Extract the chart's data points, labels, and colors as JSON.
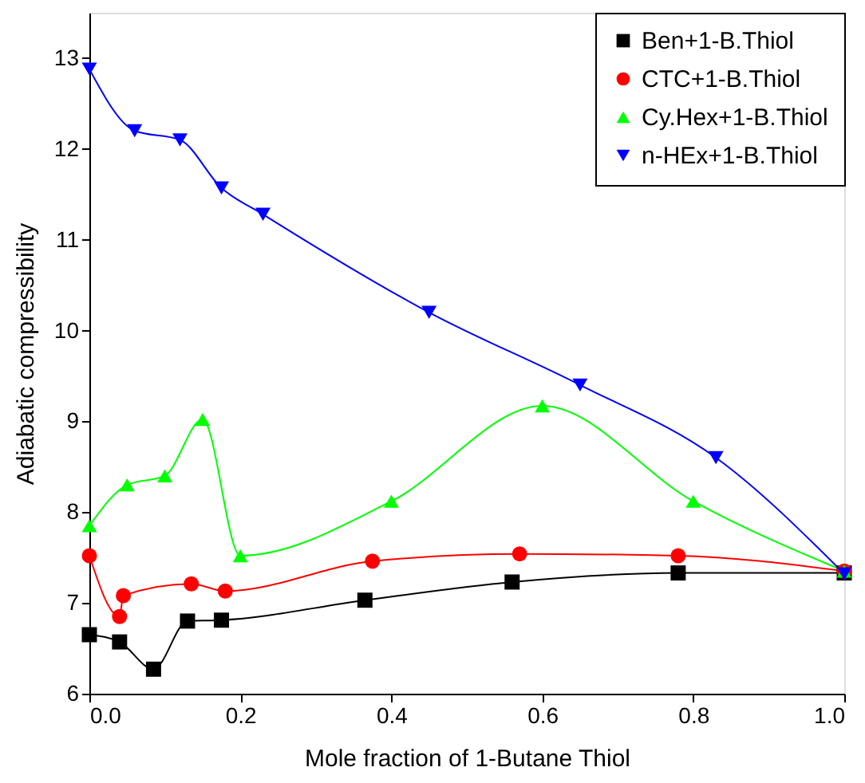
{
  "chart_data": {
    "type": "line",
    "xlabel": "Mole fraction of 1-Butane Thiol",
    "ylabel": "Adiabatic compressibility",
    "xlim": [
      0,
      1
    ],
    "xticks": [
      {
        "value": 0,
        "label": "0.0"
      },
      0.2,
      0.4,
      0.6,
      0.8,
      {
        "value": 1,
        "label": "1.0"
      }
    ],
    "ylim": [
      6,
      13.5
    ],
    "yticks": [
      6,
      7,
      8,
      9,
      10,
      11,
      12,
      13
    ],
    "grid": false,
    "legend": "top right",
    "line_style": "solid",
    "series": [
      {
        "name": "Ben+1-B.Thiol",
        "color": "#000000",
        "marker": "square",
        "x": [
          0,
          0.04,
          0.085,
          0.13,
          0.175,
          0.365,
          0.56,
          0.78,
          1.0
        ],
        "values": [
          6.65,
          6.57,
          6.27,
          6.8,
          6.81,
          7.03,
          7.23,
          7.33,
          7.33
        ]
      },
      {
        "name": "CTC+1-B.Thiol",
        "color": "#ff0000",
        "marker": "circle",
        "x": [
          0,
          0.04,
          0.045,
          0.135,
          0.18,
          0.375,
          0.57,
          0.78,
          1.0
        ],
        "values": [
          7.52,
          6.85,
          7.08,
          7.21,
          7.13,
          7.46,
          7.54,
          7.52,
          7.35
        ]
      },
      {
        "name": "Cy.Hex+1-B.Thiol",
        "color": "#00ff00",
        "marker": "triangle",
        "x": [
          0,
          0.05,
          0.1,
          0.15,
          0.2,
          0.4,
          0.6,
          0.8,
          1.0
        ],
        "values": [
          7.85,
          8.3,
          8.4,
          9.02,
          7.52,
          8.12,
          9.17,
          8.12,
          7.35
        ]
      },
      {
        "name": "n-HEx+1-B.Thiol",
        "color": "#0000ff",
        "marker": "triangle-down",
        "x": [
          0,
          0.06,
          0.12,
          0.175,
          0.23,
          0.45,
          0.65,
          0.83,
          1.0
        ],
        "values": [
          12.88,
          12.2,
          12.1,
          11.57,
          11.28,
          10.2,
          9.4,
          8.6,
          7.32
        ]
      }
    ]
  }
}
